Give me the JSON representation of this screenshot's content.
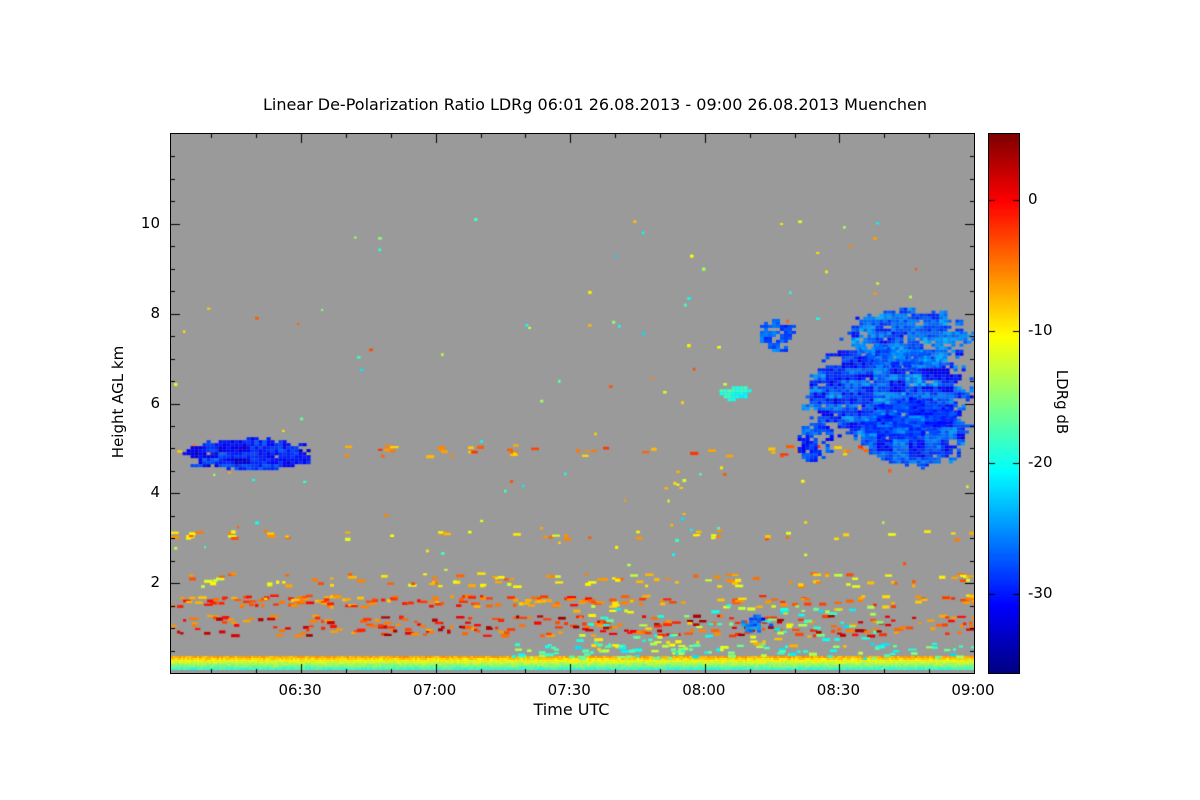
{
  "title": "Linear De-Polarization Ratio LDRg   06:01 26.08.2013 - 09:00 26.08.2013 Muenchen",
  "axes": {
    "x": {
      "label": "Time UTC",
      "range_hours": [
        6.0167,
        9.0
      ],
      "ticks": [
        {
          "value": 6.5,
          "label": "06:30"
        },
        {
          "value": 7.0,
          "label": "07:00"
        },
        {
          "value": 7.5,
          "label": "07:30"
        },
        {
          "value": 8.0,
          "label": "08:00"
        },
        {
          "value": 8.5,
          "label": "08:30"
        },
        {
          "value": 9.0,
          "label": "09:00"
        }
      ]
    },
    "y": {
      "label": "Height AGL km",
      "range_km": [
        0,
        12
      ],
      "ticks": [
        {
          "value": 2,
          "label": "2"
        },
        {
          "value": 4,
          "label": "4"
        },
        {
          "value": 6,
          "label": "6"
        },
        {
          "value": 8,
          "label": "8"
        },
        {
          "value": 10,
          "label": "10"
        }
      ]
    },
    "colorbar": {
      "label": "LDRg dB",
      "range_db": [
        -36,
        5
      ],
      "ticks": [
        {
          "value": 0,
          "label": "0"
        },
        {
          "value": -10,
          "label": "-10"
        },
        {
          "value": -20,
          "label": "-20"
        },
        {
          "value": -30,
          "label": "-30"
        }
      ]
    }
  },
  "colors": {
    "page_bg": "#ffffff",
    "plot_bg": "#9a9a9a",
    "frame": "#000000",
    "text": "#000000"
  },
  "chart_data": {
    "type": "heatmap",
    "title": "Linear De-Polarization Ratio LDRg",
    "time_start": "06:01 26.08.2013",
    "time_end": "09:00 26.08.2013",
    "station": "Muenchen",
    "xlabel": "Time UTC",
    "ylabel": "Height AGL km",
    "value_label": "LDRg dB",
    "colormap": "jet",
    "x_range_hours": [
      6.0167,
      9.0
    ],
    "y_range_km": [
      0,
      12
    ],
    "value_range_db": [
      -36,
      5
    ],
    "no_data_color": "#9a9a9a",
    "features": [
      {
        "name": "surface-aerosol-band",
        "kind": "band",
        "t": [
          6.017,
          9.0
        ],
        "h": [
          0.1,
          0.38
        ],
        "db": [
          -19,
          -7
        ]
      },
      {
        "name": "surface-cyan-thickening",
        "kind": "speckles",
        "t": [
          7.25,
          9.0
        ],
        "h": [
          0.34,
          0.68
        ],
        "db": [
          -22,
          -13
        ],
        "density": 0.5,
        "dash": true
      },
      {
        "name": "layer-1km-red",
        "kind": "speckles",
        "t": [
          6.017,
          9.0
        ],
        "h": [
          0.85,
          1.3
        ],
        "db": [
          -7,
          4
        ],
        "density": 0.75,
        "dash": true
      },
      {
        "name": "layer-1p6km-early",
        "kind": "speckles",
        "t": [
          6.017,
          7.6
        ],
        "h": [
          1.5,
          1.75
        ],
        "db": [
          -9,
          0
        ],
        "density": 0.7,
        "dash": true
      },
      {
        "name": "layer-1p6km-late",
        "kind": "speckles",
        "t": [
          7.6,
          9.0
        ],
        "h": [
          1.5,
          1.75
        ],
        "db": [
          -10,
          -1
        ],
        "density": 0.35,
        "dash": true
      },
      {
        "name": "layer-2km",
        "kind": "speckles",
        "t": [
          6.017,
          9.0
        ],
        "h": [
          1.95,
          2.25
        ],
        "db": [
          -13,
          -3
        ],
        "density": 0.3,
        "dash": true
      },
      {
        "name": "drizzle-cluster",
        "kind": "speckles",
        "t": [
          7.5,
          8.65
        ],
        "h": [
          0.45,
          1.55
        ],
        "db": [
          -22,
          -7
        ],
        "density": 0.8,
        "dash": true
      },
      {
        "name": "low-dark-blue-patch",
        "kind": "blob",
        "t": [
          8.12,
          8.28
        ],
        "h": [
          0.85,
          1.3
        ],
        "db": [
          -33,
          -22
        ],
        "fill": 0.5
      },
      {
        "name": "row-5km",
        "kind": "speckles",
        "t": [
          6.017,
          9.0
        ],
        "h": [
          4.85,
          5.1
        ],
        "db": [
          -9,
          -2
        ],
        "density": 0.22,
        "dash": true
      },
      {
        "name": "row-3km",
        "kind": "speckles",
        "t": [
          6.017,
          9.0
        ],
        "h": [
          3.0,
          3.2
        ],
        "db": [
          -12,
          -3
        ],
        "density": 0.12,
        "dash": true
      },
      {
        "name": "virga-streak",
        "kind": "speckles",
        "t": [
          7.85,
          7.93
        ],
        "h": [
          3.3,
          4.6
        ],
        "db": [
          -13,
          -7
        ],
        "density": 0.9,
        "dash": false
      },
      {
        "name": "mid-level-scatter",
        "kind": "speckles",
        "t": [
          6.017,
          9.0
        ],
        "h": [
          2.3,
          10.3
        ],
        "db": [
          -22,
          -3
        ],
        "density": 0.28,
        "dash": false
      },
      {
        "name": "left-cloud",
        "kind": "blob",
        "t": [
          6.03,
          6.58
        ],
        "h": [
          4.45,
          5.25
        ],
        "db": [
          -34,
          -26
        ],
        "fill": 0.9
      },
      {
        "name": "cyan-cloud-patch",
        "kind": "blob",
        "t": [
          8.04,
          8.18
        ],
        "h": [
          6.05,
          6.45
        ],
        "db": [
          -22,
          -17
        ],
        "fill": 0.8
      },
      {
        "name": "right-cloud-detached",
        "kind": "blob",
        "t": [
          8.19,
          8.35
        ],
        "h": [
          7.1,
          7.95
        ],
        "db": [
          -31,
          -24
        ],
        "fill": 0.65
      },
      {
        "name": "right-cloud-left-tail",
        "kind": "blob",
        "t": [
          8.33,
          8.5
        ],
        "h": [
          4.6,
          5.7
        ],
        "db": [
          -32,
          -25
        ],
        "fill": 0.55
      },
      {
        "name": "right-cloud-main",
        "kind": "blob",
        "t": [
          8.33,
          9.02
        ],
        "h": [
          5.0,
          7.45
        ],
        "db": [
          -33,
          -23
        ],
        "fill": 0.88
      },
      {
        "name": "right-cloud-lower-right",
        "kind": "blob",
        "t": [
          8.55,
          9.02
        ],
        "h": [
          4.5,
          6.2
        ],
        "db": [
          -32,
          -24
        ],
        "fill": 0.85
      },
      {
        "name": "right-cloud-upper",
        "kind": "blob",
        "t": [
          8.5,
          9.02
        ],
        "h": [
          6.7,
          8.2
        ],
        "db": [
          -31,
          -23
        ],
        "fill": 0.75
      }
    ]
  }
}
